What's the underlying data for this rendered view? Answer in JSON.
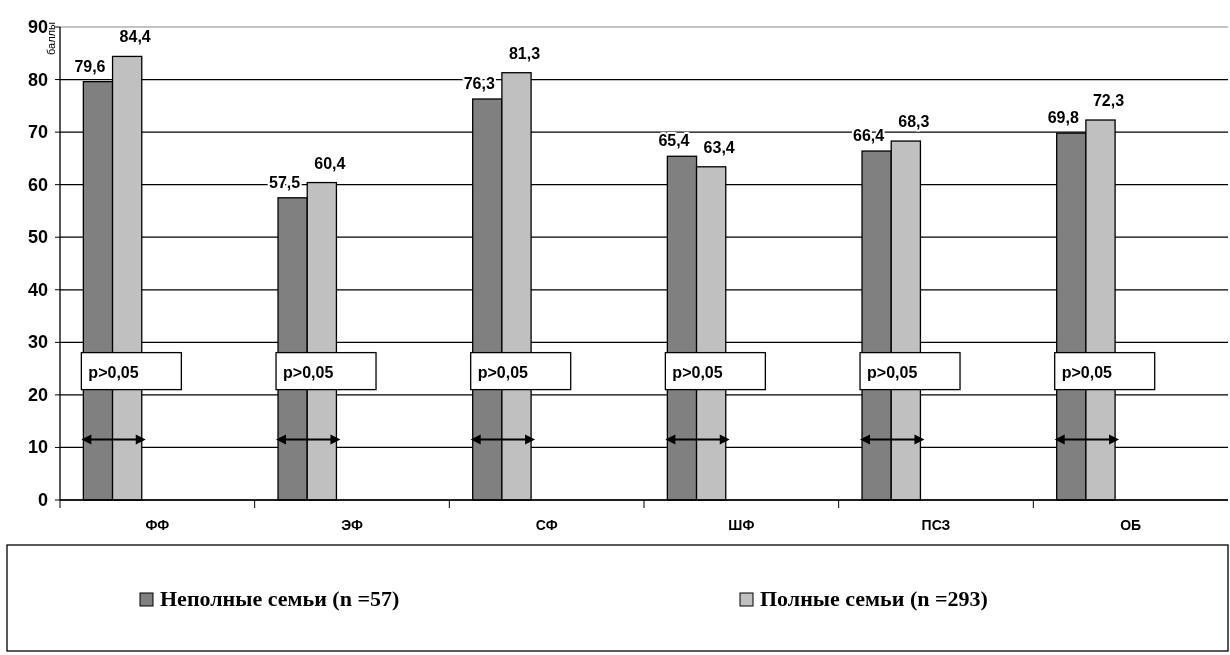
{
  "chart_data": {
    "type": "bar",
    "ylabel": "баллы",
    "categories": [
      "ФФ",
      "ЭФ",
      "СФ",
      "ШФ",
      "ПСЗ",
      "ОБ"
    ],
    "series": [
      {
        "name": "Неполные семьи (n =57)",
        "color": "#808080",
        "values": [
          79.6,
          57.5,
          76.3,
          65.4,
          66.4,
          69.8
        ],
        "value_labels": [
          "79,6",
          "57,5",
          "76,3",
          "65,4",
          "66,4",
          "69,8"
        ]
      },
      {
        "name": "Полные семьи (n =293)",
        "color": "#c0c0c0",
        "values": [
          84.4,
          60.4,
          81.3,
          63.4,
          68.3,
          72.3
        ],
        "value_labels": [
          "84,4",
          "60,4",
          "81,3",
          "63,4",
          "68,3",
          "72,3"
        ]
      }
    ],
    "ylim": [
      0,
      90
    ],
    "yticks": [
      0,
      10,
      20,
      30,
      40,
      50,
      60,
      70,
      80,
      90
    ],
    "grid": "y",
    "legend": "bottom",
    "annotations": [
      "p>0,05",
      "p>0,05",
      "p>0,05",
      "p>0,05",
      "p>0,05",
      "p>0,05"
    ]
  }
}
